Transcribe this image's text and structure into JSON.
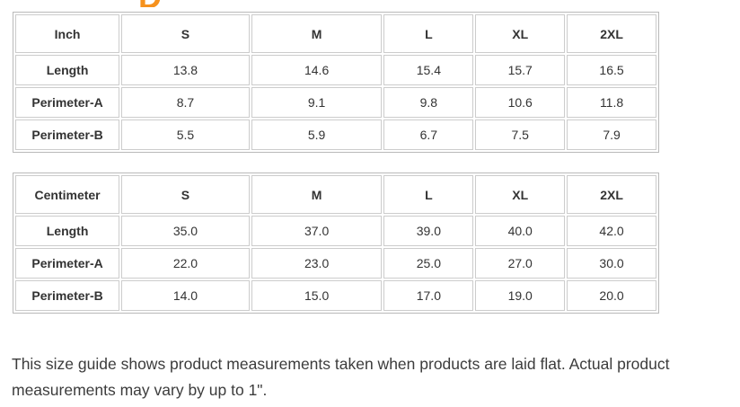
{
  "decoration": {
    "partial_heading_letter": "D",
    "accent_color": "#F6921E"
  },
  "inch_table": {
    "unit": "Inch",
    "sizes": [
      "S",
      "M",
      "L",
      "XL",
      "2XL"
    ],
    "rows": [
      {
        "label": "Length",
        "values": [
          "13.8",
          "14.6",
          "15.4",
          "15.7",
          "16.5"
        ]
      },
      {
        "label": "Perimeter-A",
        "values": [
          "8.7",
          "9.1",
          "9.8",
          "10.6",
          "11.8"
        ]
      },
      {
        "label": "Perimeter-B",
        "values": [
          "5.5",
          "5.9",
          "6.7",
          "7.5",
          "7.9"
        ]
      }
    ]
  },
  "cm_table": {
    "unit": "Centimeter",
    "sizes": [
      "S",
      "M",
      "L",
      "XL",
      "2XL"
    ],
    "rows": [
      {
        "label": "Length",
        "values": [
          "35.0",
          "37.0",
          "39.0",
          "40.0",
          "42.0"
        ]
      },
      {
        "label": "Perimeter-A",
        "values": [
          "22.0",
          "23.0",
          "25.0",
          "27.0",
          "30.0"
        ]
      },
      {
        "label": "Perimeter-B",
        "values": [
          "14.0",
          "15.0",
          "17.0",
          "19.0",
          "20.0"
        ]
      }
    ]
  },
  "note": "This size guide shows product measurements taken when products are laid flat. Actual product measurements may vary by up to 1\"."
}
